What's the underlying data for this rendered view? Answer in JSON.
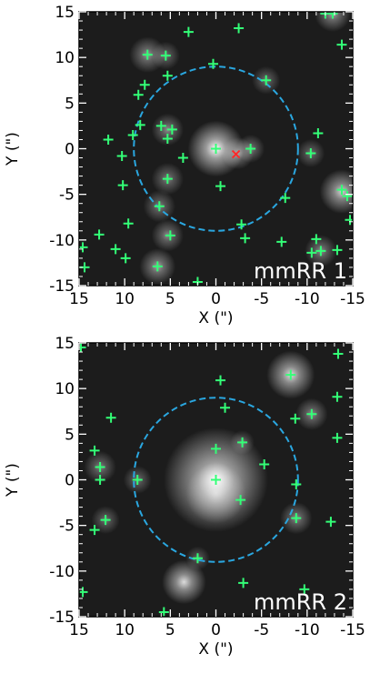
{
  "colors": {
    "marker": "#33ff77",
    "special_marker": "#ff2a2a",
    "circle": "#2aa7e0",
    "background": "#1c1c1c"
  },
  "chart_data": [
    {
      "type": "scatter",
      "panel_label": "mmRR 1",
      "xlabel": "X (\")",
      "ylabel": "Y (\")",
      "xlim": [
        15,
        -15
      ],
      "ylim": [
        -15,
        15
      ],
      "x_ticks": [
        "15",
        "10",
        "5",
        "0",
        "-5",
        "-10",
        "-15"
      ],
      "y_ticks": [
        "15",
        "10",
        "5",
        "0",
        "-5",
        "-10",
        "-15"
      ],
      "circle": {
        "center": [
          0,
          0
        ],
        "radius": 9,
        "style": "dashed"
      },
      "markers": [
        {
          "x": 0,
          "y": 0
        },
        {
          "x": -3.8,
          "y": 0
        },
        {
          "x": 3,
          "y": 12.8
        },
        {
          "x": -2.5,
          "y": 13.2
        },
        {
          "x": -12,
          "y": 14.8
        },
        {
          "x": -12.8,
          "y": 14.8
        },
        {
          "x": 7.5,
          "y": 10.3
        },
        {
          "x": 5.5,
          "y": 10.2
        },
        {
          "x": 0.3,
          "y": 9.3
        },
        {
          "x": -13.8,
          "y": 11.4
        },
        {
          "x": 5.3,
          "y": 8
        },
        {
          "x": 7.8,
          "y": 7
        },
        {
          "x": -5.5,
          "y": 7.5
        },
        {
          "x": 8.5,
          "y": 5.9
        },
        {
          "x": 6,
          "y": 2.5
        },
        {
          "x": 8.3,
          "y": 2.6
        },
        {
          "x": 4.8,
          "y": 2.1
        },
        {
          "x": 9.1,
          "y": 1.5
        },
        {
          "x": 5.3,
          "y": 1.1
        },
        {
          "x": 11.8,
          "y": 1
        },
        {
          "x": 10.3,
          "y": -0.8
        },
        {
          "x": 3.6,
          "y": -1
        },
        {
          "x": -10.4,
          "y": -0.5
        },
        {
          "x": -11.2,
          "y": 1.7
        },
        {
          "x": 5.3,
          "y": -3.3
        },
        {
          "x": 10.2,
          "y": -4
        },
        {
          "x": -0.5,
          "y": -4.1
        },
        {
          "x": -7.6,
          "y": -5.4
        },
        {
          "x": -13.8,
          "y": -4.5
        },
        {
          "x": -14.4,
          "y": -5.2
        },
        {
          "x": 6.2,
          "y": -6.3
        },
        {
          "x": 9.6,
          "y": -8.2
        },
        {
          "x": -2.8,
          "y": -8.3
        },
        {
          "x": -14.7,
          "y": -7.8
        },
        {
          "x": 12.8,
          "y": -9.4
        },
        {
          "x": 5,
          "y": -9.5
        },
        {
          "x": -3.2,
          "y": -9.8
        },
        {
          "x": -7.2,
          "y": -10.2
        },
        {
          "x": -11,
          "y": -9.9
        },
        {
          "x": 14.6,
          "y": -10.8
        },
        {
          "x": 11,
          "y": -11
        },
        {
          "x": 9.9,
          "y": -12
        },
        {
          "x": -10.5,
          "y": -11.4
        },
        {
          "x": -11.5,
          "y": -11.2
        },
        {
          "x": -13.3,
          "y": -11.1
        },
        {
          "x": 14.4,
          "y": -13
        },
        {
          "x": 6.4,
          "y": -12.9
        },
        {
          "x": 2,
          "y": -14.6
        }
      ],
      "special_markers": [
        {
          "x": -2.2,
          "y": -0.6
        }
      ],
      "sources": [
        {
          "x": 0,
          "y": 0,
          "b": 1.0,
          "s": 1.4
        },
        {
          "x": -2.4,
          "y": -0.5,
          "b": 0.55,
          "s": 0.8
        },
        {
          "x": -3.8,
          "y": 0,
          "b": 0.45,
          "s": 0.7
        },
        {
          "x": 7.5,
          "y": 10.3,
          "b": 0.55,
          "s": 0.9
        },
        {
          "x": 5.5,
          "y": 10.2,
          "b": 0.4,
          "s": 0.7
        },
        {
          "x": -12.8,
          "y": 14.8,
          "b": 0.6,
          "s": 0.9
        },
        {
          "x": -13.8,
          "y": -4.7,
          "b": 0.8,
          "s": 1.1
        },
        {
          "x": 6.2,
          "y": -6.3,
          "b": 0.45,
          "s": 0.8
        },
        {
          "x": 5.3,
          "y": -9.5,
          "b": 0.5,
          "s": 0.8
        },
        {
          "x": 6.4,
          "y": -12.9,
          "b": 0.6,
          "s": 0.9
        },
        {
          "x": 5.3,
          "y": 2.1,
          "b": 0.5,
          "s": 0.8
        },
        {
          "x": -10.4,
          "y": -0.5,
          "b": 0.4,
          "s": 0.7
        },
        {
          "x": -11.5,
          "y": -11.2,
          "b": 0.5,
          "s": 0.8
        },
        {
          "x": -5.5,
          "y": 7.5,
          "b": 0.4,
          "s": 0.7
        },
        {
          "x": 5.3,
          "y": -3.3,
          "b": 0.45,
          "s": 0.8
        }
      ]
    },
    {
      "type": "scatter",
      "panel_label": "mmRR 2",
      "xlabel": "X (\")",
      "ylabel": "Y (\")",
      "xlim": [
        15,
        -15
      ],
      "ylim": [
        -15,
        15
      ],
      "x_ticks": [
        "15",
        "10",
        "5",
        "0",
        "-5",
        "-10",
        "-15"
      ],
      "y_ticks": [
        "15",
        "10",
        "5",
        "0",
        "-5",
        "-10",
        "-15"
      ],
      "circle": {
        "center": [
          0,
          0
        ],
        "radius": 9,
        "style": "dashed"
      },
      "markers": [
        {
          "x": 0,
          "y": 0
        },
        {
          "x": 0,
          "y": 3.4
        },
        {
          "x": -0.5,
          "y": 10.9
        },
        {
          "x": -1,
          "y": 7.9
        },
        {
          "x": 14.8,
          "y": 14.5
        },
        {
          "x": -13.4,
          "y": 13.8
        },
        {
          "x": -8.2,
          "y": 11.5
        },
        {
          "x": -13.3,
          "y": 9.1
        },
        {
          "x": 11.5,
          "y": 6.8
        },
        {
          "x": -10.5,
          "y": 7.2
        },
        {
          "x": -8.7,
          "y": 6.7
        },
        {
          "x": -13.3,
          "y": 4.6
        },
        {
          "x": -2.9,
          "y": 4.1
        },
        {
          "x": 13.3,
          "y": 3.2
        },
        {
          "x": -5.3,
          "y": 1.7
        },
        {
          "x": 12.7,
          "y": 1.4
        },
        {
          "x": 12.7,
          "y": 0
        },
        {
          "x": 8.6,
          "y": 0
        },
        {
          "x": -8.8,
          "y": -0.5
        },
        {
          "x": -2.7,
          "y": -2.2
        },
        {
          "x": -8.8,
          "y": -4.2
        },
        {
          "x": 12.1,
          "y": -4.4
        },
        {
          "x": 13.3,
          "y": -5.5
        },
        {
          "x": -12.6,
          "y": -4.6
        },
        {
          "x": 2,
          "y": -8.6
        },
        {
          "x": -3,
          "y": -11.3
        },
        {
          "x": -9.7,
          "y": -12
        },
        {
          "x": 14.6,
          "y": -12.3
        },
        {
          "x": 5.7,
          "y": -14.5
        }
      ],
      "special_markers": [],
      "sources": [
        {
          "x": 0,
          "y": 0,
          "b": 1.0,
          "s": 2.6
        },
        {
          "x": 0,
          "y": -1.5,
          "b": 0.6,
          "s": 1.5
        },
        {
          "x": -8.2,
          "y": 11.5,
          "b": 0.85,
          "s": 1.2
        },
        {
          "x": 3.5,
          "y": -11.2,
          "b": 0.85,
          "s": 1.1
        },
        {
          "x": -10.5,
          "y": 7.2,
          "b": 0.5,
          "s": 0.8
        },
        {
          "x": 12.7,
          "y": 1.4,
          "b": 0.45,
          "s": 0.8
        },
        {
          "x": 8.6,
          "y": 0,
          "b": 0.4,
          "s": 0.7
        },
        {
          "x": -8.8,
          "y": -4.2,
          "b": 0.5,
          "s": 0.8
        },
        {
          "x": 12.1,
          "y": -4.4,
          "b": 0.4,
          "s": 0.7
        },
        {
          "x": -2.9,
          "y": 4.1,
          "b": 0.35,
          "s": 0.6
        },
        {
          "x": 2,
          "y": -8.6,
          "b": 0.35,
          "s": 0.6
        }
      ]
    }
  ]
}
